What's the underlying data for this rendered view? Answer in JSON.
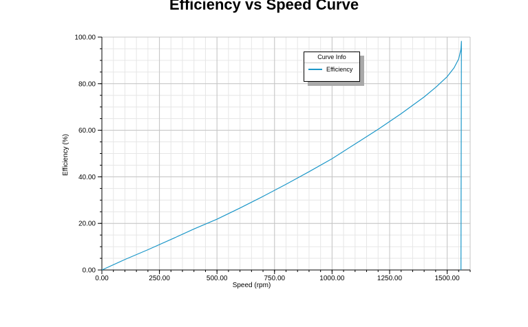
{
  "chart_data": {
    "type": "line",
    "title": "Efficiency vs Speed Curve",
    "xlabel": "Speed (rpm)",
    "ylabel": "Efficiency (%)",
    "xlim": [
      0,
      1600
    ],
    "ylim": [
      0,
      100
    ],
    "x_ticks": [
      0,
      250,
      500,
      750,
      1000,
      1250,
      1500
    ],
    "x_tick_labels": [
      "0.00",
      "250.00",
      "500.00",
      "750.00",
      "1000.00",
      "1250.00",
      "1500.00"
    ],
    "y_ticks": [
      0,
      20,
      40,
      60,
      80,
      100
    ],
    "y_tick_labels": [
      "0.00",
      "20.00",
      "40.00",
      "60.00",
      "80.00",
      "100.00"
    ],
    "grid": true,
    "legend": {
      "title": "Curve Info",
      "position": "top-right"
    },
    "series": [
      {
        "name": "Efficiency",
        "color": "#1a96c8",
        "x": [
          0,
          100,
          200,
          300,
          400,
          500,
          600,
          700,
          800,
          900,
          1000,
          1100,
          1200,
          1300,
          1400,
          1450,
          1500,
          1530,
          1550,
          1560,
          1562,
          1560
        ],
        "y": [
          0,
          4.5,
          8.7,
          13.1,
          17.6,
          21.8,
          26.6,
          31.6,
          36.8,
          42.2,
          47.8,
          54.1,
          60.4,
          67.1,
          74.3,
          78.4,
          83.0,
          86.8,
          90.6,
          94.8,
          98.2,
          0
        ]
      }
    ]
  }
}
